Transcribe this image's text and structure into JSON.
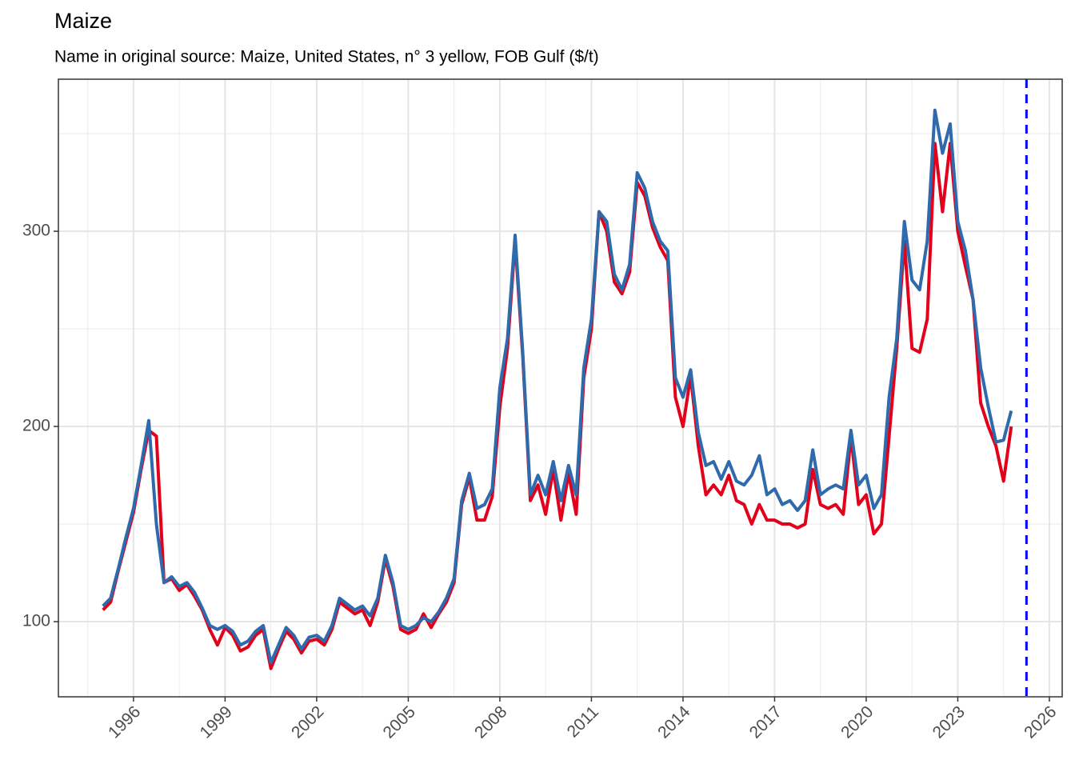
{
  "chart_data": {
    "type": "line",
    "title": "Maize",
    "subtitle": "Name in original source: Maize, United States, n° 3 yellow, FOB Gulf ($/t)",
    "x": [
      1995,
      1995.25,
      1995.5,
      1995.75,
      1996,
      1996.25,
      1996.5,
      1996.75,
      1997,
      1997.25,
      1997.5,
      1997.75,
      1998,
      1998.25,
      1998.5,
      1998.75,
      1999,
      1999.25,
      1999.5,
      1999.75,
      2000,
      2000.25,
      2000.5,
      2000.75,
      2001,
      2001.25,
      2001.5,
      2001.75,
      2002,
      2002.25,
      2002.5,
      2002.75,
      2003,
      2003.25,
      2003.5,
      2003.75,
      2004,
      2004.25,
      2004.5,
      2004.75,
      2005,
      2005.25,
      2005.5,
      2005.75,
      2006,
      2006.25,
      2006.5,
      2006.75,
      2007,
      2007.25,
      2007.5,
      2007.75,
      2008,
      2008.25,
      2008.5,
      2008.75,
      2009,
      2009.25,
      2009.5,
      2009.75,
      2010,
      2010.25,
      2010.5,
      2010.75,
      2011,
      2011.25,
      2011.5,
      2011.75,
      2012,
      2012.25,
      2012.5,
      2012.75,
      2013,
      2013.25,
      2013.5,
      2013.75,
      2014,
      2014.25,
      2014.5,
      2014.75,
      2015,
      2015.25,
      2015.5,
      2015.75,
      2016,
      2016.25,
      2016.5,
      2016.75,
      2017,
      2017.25,
      2017.5,
      2017.75,
      2018,
      2018.25,
      2018.5,
      2018.75,
      2019,
      2019.25,
      2019.5,
      2019.75,
      2020,
      2020.25,
      2020.5,
      2020.75,
      2021,
      2021.25,
      2021.5,
      2021.75,
      2022,
      2022.25,
      2022.5,
      2022.75,
      2023,
      2023.25,
      2023.5,
      2023.75,
      2024,
      2024.25,
      2024.5,
      2024.75
    ],
    "series": [
      {
        "color": "#e3001b",
        "values": [
          106,
          110,
          126,
          141,
          156,
          178,
          198,
          195,
          120,
          122,
          116,
          119,
          113,
          106,
          96,
          88,
          97,
          93,
          85,
          87,
          93,
          96,
          76,
          86,
          95,
          91,
          84,
          90,
          91,
          88,
          96,
          110,
          107,
          104,
          106,
          98,
          110,
          132,
          118,
          96,
          94,
          96,
          104,
          97,
          104,
          110,
          120,
          160,
          174,
          152,
          152,
          164,
          210,
          240,
          295,
          236,
          162,
          170,
          155,
          178,
          152,
          176,
          155,
          225,
          250,
          310,
          300,
          274,
          268,
          279,
          325,
          318,
          302,
          292,
          285,
          215,
          200,
          226,
          190,
          165,
          170,
          165,
          175,
          162,
          160,
          150,
          160,
          152,
          152,
          150,
          150,
          148,
          150,
          178,
          160,
          158,
          160,
          155,
          195,
          160,
          165,
          145,
          150,
          195,
          240,
          295,
          240,
          238,
          255,
          345,
          310,
          345,
          300,
          282,
          265,
          212,
          200,
          190,
          172,
          200
        ]
      },
      {
        "color": "#2e6aac",
        "values": [
          108,
          112,
          127,
          143,
          158,
          180,
          203,
          150,
          120,
          123,
          118,
          120,
          115,
          107,
          98,
          96,
          98,
          95,
          88,
          90,
          95,
          98,
          79,
          88,
          97,
          93,
          86,
          92,
          93,
          90,
          98,
          112,
          109,
          106,
          108,
          103,
          112,
          134,
          120,
          98,
          96,
          98,
          102,
          100,
          105,
          112,
          122,
          162,
          176,
          158,
          160,
          168,
          220,
          245,
          298,
          238,
          165,
          175,
          165,
          182,
          162,
          180,
          165,
          230,
          255,
          310,
          305,
          278,
          270,
          283,
          330,
          322,
          305,
          295,
          290,
          225,
          215,
          229,
          197,
          180,
          182,
          173,
          182,
          172,
          170,
          175,
          185,
          165,
          168,
          160,
          162,
          157,
          162,
          188,
          165,
          168,
          170,
          168,
          198,
          170,
          175,
          158,
          165,
          215,
          245,
          305,
          275,
          270,
          295,
          362,
          340,
          355,
          305,
          290,
          265,
          230,
          210,
          192,
          193,
          208
        ]
      }
    ],
    "vline": {
      "value": 2025.25,
      "color": "#0000ff"
    },
    "xlim": [
      1993.54,
      2026.42
    ],
    "xticks": [
      1996,
      1999,
      2002,
      2005,
      2008,
      2011,
      2014,
      2017,
      2020,
      2023,
      2026
    ],
    "x_minor_ticks": [
      1994.5,
      1997.5,
      2000.5,
      2003.5,
      2006.5,
      2009.5,
      2012.5,
      2015.5,
      2018.5,
      2021.5,
      2024.5
    ],
    "ylim": [
      61.5,
      377.9
    ],
    "yticks": [
      100,
      200,
      300
    ],
    "y_minor_ticks": [
      150,
      250,
      350
    ],
    "grid": true
  }
}
